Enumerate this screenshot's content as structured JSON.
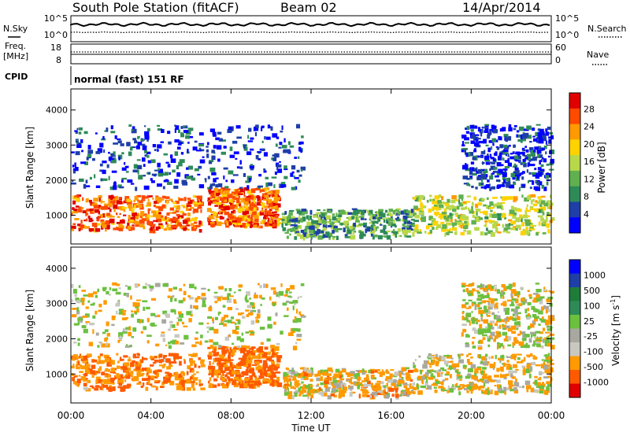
{
  "header": {
    "title": "South Pole Station (fitACF)",
    "beam": "Beam 02",
    "date": "14/Apr/2014"
  },
  "noise_panel": {
    "left_label": "N.Sky",
    "right_label": "N.Search",
    "left_ticks": [
      "10^5",
      "10^0"
    ],
    "right_ticks": [
      "10^5",
      "10^0"
    ]
  },
  "freq_panel": {
    "left_label_line1": "Freq.",
    "left_label_line2": "[MHz]",
    "right_label": "Nave",
    "left_ticks": [
      "18",
      "8"
    ],
    "right_ticks": [
      "60",
      "0"
    ]
  },
  "cpid": {
    "label": "CPID",
    "value": "normal (fast) 151 RF"
  },
  "colors": {
    "power_scale": [
      "#0000ff",
      "#1e3fa6",
      "#2e8b57",
      "#60b050",
      "#b8d84a",
      "#ffd200",
      "#ff9a00",
      "#ff4a00",
      "#e00000"
    ],
    "velocity_scale": [
      "#e00000",
      "#ff5a00",
      "#ff9a00",
      "#c8c8c0",
      "#a8a8a0",
      "#6cc040",
      "#2e8b57",
      "#1e7c3a",
      "#1e3fa6",
      "#0000ff"
    ]
  },
  "chart_data": [
    {
      "type": "heatmap",
      "panel": "power",
      "ylabel": "Slant Range [km]",
      "xlabel": "",
      "ylim": [
        180,
        4600
      ],
      "yticks": [
        "4000",
        "3000",
        "2000",
        "1000"
      ],
      "xticks": [
        "00:00",
        "04:00",
        "08:00",
        "12:00",
        "16:00",
        "20:00",
        "00:00"
      ],
      "colorbar": {
        "label": "Power [dB]",
        "ticks": [
          "28",
          "24",
          "20",
          "16",
          "12",
          "8",
          "4"
        ]
      },
      "description_regions": [
        {
          "x0": 0.0,
          "x1": 6.5,
          "y0": 600,
          "y1": 1600,
          "level": 24
        },
        {
          "x0": 6.8,
          "x1": 10.3,
          "y0": 700,
          "y1": 1800,
          "level": 24
        },
        {
          "x0": 10.5,
          "x1": 17.0,
          "y0": 400,
          "y1": 1200,
          "level": 12
        },
        {
          "x0": 17.0,
          "x1": 24.0,
          "y0": 500,
          "y1": 1600,
          "level": 16
        },
        {
          "x0": 0.0,
          "x1": 11.5,
          "y0": 1800,
          "y1": 3600,
          "level": 6
        },
        {
          "x0": 19.5,
          "x1": 24.0,
          "y0": 1800,
          "y1": 3600,
          "level": 6
        }
      ]
    },
    {
      "type": "heatmap",
      "panel": "velocity",
      "ylabel": "Slant Range [km]",
      "xlabel": "Time UT",
      "ylim": [
        180,
        4600
      ],
      "yticks": [
        "4000",
        "3000",
        "2000",
        "1000"
      ],
      "xticks": [
        "00:00",
        "04:00",
        "08:00",
        "12:00",
        "16:00",
        "20:00",
        "00:00"
      ],
      "colorbar": {
        "label": "Velocity [m s-1]",
        "ticks": [
          "1000",
          "500",
          "100",
          "25",
          "-25",
          "-100",
          "-500",
          "-1000"
        ]
      },
      "description_regions": [
        {
          "x0": 0.0,
          "x1": 6.5,
          "y0": 600,
          "y1": 1600,
          "level": -300
        },
        {
          "x0": 6.8,
          "x1": 10.3,
          "y0": 700,
          "y1": 1800,
          "level": -400
        },
        {
          "x0": 10.5,
          "x1": 17.0,
          "y0": 400,
          "y1": 1200,
          "level": -100
        },
        {
          "x0": 17.0,
          "x1": 24.0,
          "y0": 500,
          "y1": 1600,
          "level": -50
        },
        {
          "x0": 0.0,
          "x1": 11.5,
          "y0": 1800,
          "y1": 3600,
          "level": 0
        },
        {
          "x0": 19.5,
          "x1": 24.0,
          "y0": 1800,
          "y1": 3600,
          "level": 0
        }
      ]
    }
  ]
}
